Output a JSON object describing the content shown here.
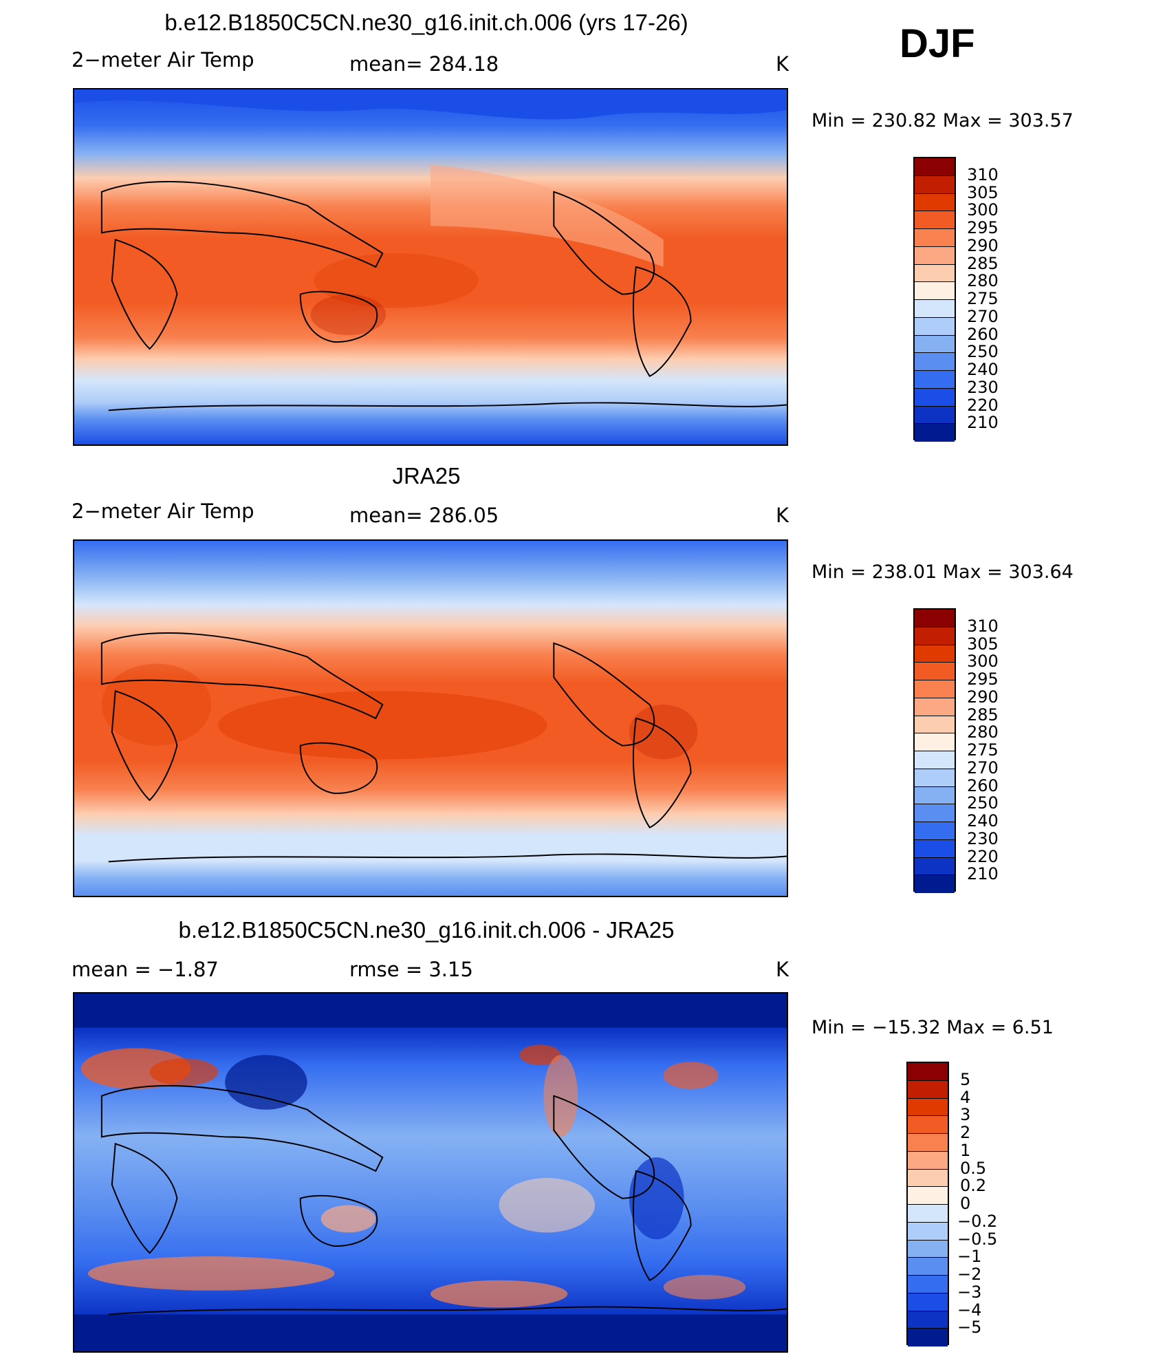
{
  "season": "DJF",
  "panels": [
    {
      "title": "b.e12.B1850C5CN.ne30_g16.init.ch.006 (yrs 17-26)",
      "left_label": "2−meter Air Temp",
      "center_label": "mean=  284.18",
      "unit": "K",
      "minmax": "Min  =  230.82  Max  =  303.57",
      "colorbar": {
        "ticks": [
          "310",
          "305",
          "300",
          "295",
          "290",
          "285",
          "280",
          "275",
          "270",
          "260",
          "250",
          "240",
          "230",
          "220",
          "210"
        ],
        "colors": [
          "#8b0000",
          "#c21f00",
          "#e03a00",
          "#f25c24",
          "#f8814f",
          "#fca883",
          "#fdcdb0",
          "#fef0e2",
          "#d4e6fb",
          "#aecdf8",
          "#85b1f3",
          "#5a8ef0",
          "#356df0",
          "#1a4ee6",
          "#0c33c4",
          "#001a8f"
        ]
      }
    },
    {
      "title": "JRA25",
      "left_label": "2−meter Air Temp",
      "center_label": "mean=  286.05",
      "unit": "K",
      "minmax": "Min  =  238.01  Max  =  303.64",
      "colorbar": {
        "ticks": [
          "310",
          "305",
          "300",
          "295",
          "290",
          "285",
          "280",
          "275",
          "270",
          "260",
          "250",
          "240",
          "230",
          "220",
          "210"
        ],
        "colors": [
          "#8b0000",
          "#c21f00",
          "#e03a00",
          "#f25c24",
          "#f8814f",
          "#fca883",
          "#fdcdb0",
          "#fef0e2",
          "#d4e6fb",
          "#aecdf8",
          "#85b1f3",
          "#5a8ef0",
          "#356df0",
          "#1a4ee6",
          "#0c33c4",
          "#001a8f"
        ]
      }
    },
    {
      "title": "b.e12.B1850C5CN.ne30_g16.init.ch.006 - JRA25",
      "left_label": "mean  =    −1.87",
      "center_label": "rmse  =     3.15",
      "unit": "K",
      "minmax": "Min  =  −15.32  Max  =     6.51",
      "colorbar": {
        "ticks": [
          "5",
          "4",
          "3",
          "2",
          "1",
          "0.5",
          "0.2",
          "0",
          "−0.2",
          "−0.5",
          "−1",
          "−2",
          "−3",
          "−4",
          "−5"
        ],
        "colors": [
          "#8b0000",
          "#c21f00",
          "#e03a00",
          "#f25c24",
          "#f8814f",
          "#fca883",
          "#fdcdb0",
          "#fef0e2",
          "#d4e6fb",
          "#aecdf8",
          "#85b1f3",
          "#5a8ef0",
          "#356df0",
          "#1a4ee6",
          "#0c33c4",
          "#001a8f"
        ]
      }
    }
  ]
}
